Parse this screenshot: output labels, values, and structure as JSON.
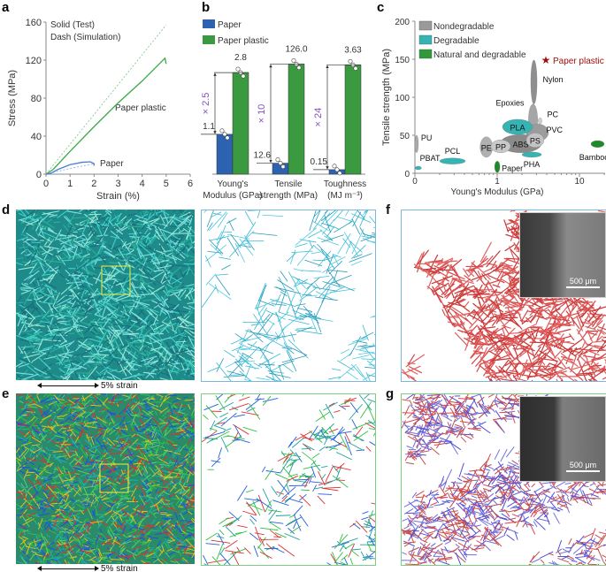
{
  "panel_labels": [
    "a",
    "b",
    "c",
    "d",
    "e",
    "f",
    "g"
  ],
  "chart_data": [
    {
      "type": "line",
      "panel": "a",
      "xlabel": "Strain (%)",
      "ylabel": "Stress (MPa)",
      "xlim": [
        0,
        6
      ],
      "ylim": [
        0,
        160
      ],
      "xticks": [
        "0",
        "1",
        "2",
        "3",
        "4",
        "5",
        "6"
      ],
      "yticks": [
        "0",
        "40",
        "80",
        "120",
        "160"
      ],
      "legend_text": [
        "Solid (Test)",
        "Dash (Simulation)"
      ],
      "annotations": [
        "Paper plastic",
        "Paper"
      ],
      "colors": {
        "paper_plastic": "#3aaa48",
        "paper": "#4a7fd0"
      },
      "series": [
        {
          "name": "Paper plastic (Test)",
          "style": "solid",
          "x": [
            0,
            0.3,
            1,
            2,
            3,
            4,
            4.95,
            5.0
          ],
          "y": [
            0,
            5,
            24,
            50,
            75,
            98,
            122,
            116
          ]
        },
        {
          "name": "Paper plastic (Simulation)",
          "style": "dash",
          "x": [
            0,
            5.0
          ],
          "y": [
            0,
            157
          ]
        },
        {
          "name": "Paper (Test)",
          "style": "solid",
          "x": [
            0,
            0.2,
            0.5,
            1,
            1.5,
            1.85,
            2.0,
            2.0
          ],
          "y": [
            0,
            1,
            5,
            10,
            12.5,
            13,
            11,
            9
          ]
        },
        {
          "name": "Paper (Simulation)",
          "style": "dash",
          "x": [
            0,
            0.5,
            1,
            1.5,
            2.0
          ],
          "y": [
            0,
            3,
            6,
            8.5,
            11
          ]
        }
      ]
    },
    {
      "type": "bar",
      "panel": "b",
      "categories": [
        [
          "Young's",
          "Modulus (GPa)"
        ],
        [
          "Tensile",
          "strength (MPa)"
        ],
        [
          "Toughness",
          "(MJ m⁻³)"
        ]
      ],
      "group_ylim": [
        3.9,
        162,
        4.7
      ],
      "series": [
        {
          "name": "Paper",
          "color": "#2d62b0",
          "values": [
            1.1,
            12.6,
            0.15
          ],
          "labels": [
            "1.1",
            "12.6",
            "0.15"
          ]
        },
        {
          "name": "Paper plastic",
          "color": "#3b9a3f",
          "values": [
            2.8,
            126.0,
            3.63
          ],
          "labels": [
            "2.8",
            "126.0",
            "3.63"
          ]
        }
      ],
      "fold_labels": [
        "× 2.5",
        "× 10",
        "× 24"
      ],
      "fold_color": "#8a4fc0"
    },
    {
      "type": "scatter",
      "panel": "c",
      "xlabel": "Young's Modulus (GPa)",
      "ylabel": "Tensile strength (MPa)",
      "xscale": "log",
      "xticks": [
        "0",
        "1",
        "10"
      ],
      "yticks": [
        "0",
        "50",
        "100",
        "150",
        "200"
      ],
      "ylim": [
        0,
        200
      ],
      "legend": [
        {
          "label": "Nondegradable",
          "color": "#9a9a9a"
        },
        {
          "label": "Degradable",
          "color": "#36b3b3"
        },
        {
          "label": "Natural and degradable",
          "color": "#2e9a3a"
        }
      ],
      "highlight": {
        "label": "Paper plastic",
        "x": 3.9,
        "y": 149,
        "color": "#a01010"
      },
      "materials": [
        {
          "label": "Nylon",
          "cls": 0,
          "x": [
            2.56,
            3.05
          ],
          "y": [
            91,
            149
          ]
        },
        {
          "label": "Epoxies",
          "cls": 0,
          "x": [
            2.4,
            3.1
          ],
          "y": [
            50,
            91
          ]
        },
        {
          "label": "PVC",
          "cls": 0,
          "x": [
            2.26,
            4.2
          ],
          "y": [
            42,
            65
          ]
        },
        {
          "label": "PC",
          "cls": 0,
          "x": [
            3.15,
            3.5
          ],
          "y": [
            65,
            73
          ]
        },
        {
          "label": "ABS",
          "cls": 0,
          "x": [
            1.08,
            3.45
          ],
          "y": [
            27,
            51
          ]
        },
        {
          "label": "PLA",
          "cls": 1,
          "x": [
            1.16,
            2.7
          ],
          "y": [
            51,
            71
          ]
        },
        {
          "label": "PS",
          "cls": 0,
          "x": [
            2.26,
            3.7
          ],
          "y": [
            34,
            53
          ]
        },
        {
          "label": "PE",
          "cls": 0,
          "x": [
            0.62,
            0.88
          ],
          "y": [
            21,
            48
          ]
        },
        {
          "label": "PP",
          "cls": 0,
          "x": [
            0.84,
            1.45
          ],
          "y": [
            27,
            44
          ]
        },
        {
          "label": "PHA",
          "cls": 1,
          "x": [
            2.0,
            3.45
          ],
          "y": [
            21,
            28
          ]
        },
        {
          "label": "Paper",
          "cls": 2,
          "x": [
            0.93,
            1.08
          ],
          "y": [
            1,
            16
          ]
        },
        {
          "label": "Bamboo",
          "cls": 2,
          "x": [
            13.8,
            20
          ],
          "y": [
            34,
            43
          ]
        },
        {
          "label": "PCL",
          "cls": 1,
          "x": [
            0.2,
            0.41
          ],
          "y": [
            12,
            20
          ]
        },
        {
          "label": "PBAT",
          "cls": 1,
          "x": [
            0.1,
            0.12
          ],
          "y": [
            5,
            9
          ]
        },
        {
          "label": "PU",
          "cls": 0,
          "x": [
            0.1,
            0.11
          ],
          "y": [
            27,
            50
          ]
        }
      ]
    }
  ],
  "strain_label": "5% strain",
  "scale_bar_f": "500 μm",
  "scale_bar_g": "500 μm"
}
